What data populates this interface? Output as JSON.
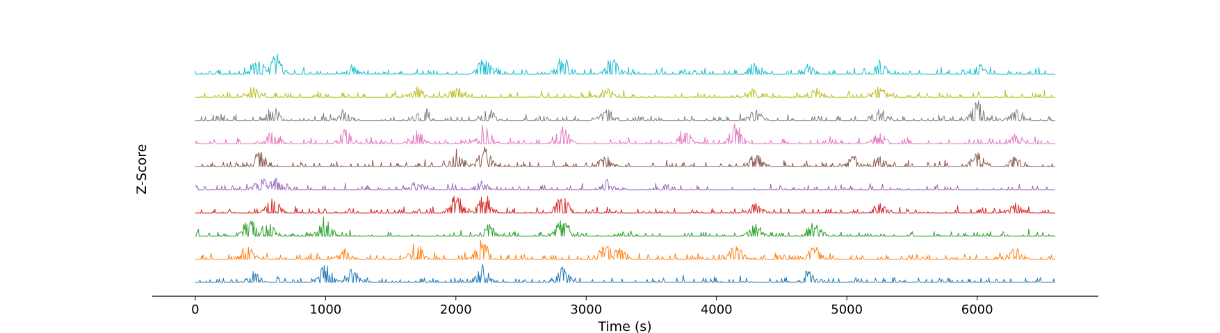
{
  "chart_data": {
    "type": "line",
    "title": "",
    "xlabel": "Time (s)",
    "ylabel": "Z-Score",
    "xlim": [
      -330,
      6930
    ],
    "xticks": [
      0,
      1000,
      2000,
      3000,
      4000,
      5000,
      6000
    ],
    "x_range": [
      0,
      6600
    ],
    "y_axis_visible": false,
    "grid": false,
    "legend": "none",
    "series": [
      {
        "color": "#1f77b4",
        "seed": 11,
        "peaks": [
          [
            450,
            0.55
          ],
          [
            1000,
            1.0
          ],
          [
            1200,
            0.7
          ],
          [
            2200,
            0.85
          ],
          [
            2820,
            0.75
          ],
          [
            4700,
            0.6
          ]
        ]
      },
      {
        "color": "#ff7f0e",
        "seed": 23,
        "peaks": [
          [
            400,
            0.7
          ],
          [
            1150,
            0.55
          ],
          [
            1700,
            0.85
          ],
          [
            2200,
            1.0
          ],
          [
            3150,
            0.8
          ],
          [
            3250,
            0.6
          ],
          [
            4150,
            0.75
          ],
          [
            4750,
            0.7
          ],
          [
            6300,
            0.6
          ]
        ]
      },
      {
        "color": "#2ca02c",
        "seed": 37,
        "peaks": [
          [
            420,
            1.0
          ],
          [
            550,
            0.8
          ],
          [
            1000,
            1.0
          ],
          [
            2250,
            0.6
          ],
          [
            2820,
            0.95
          ],
          [
            4300,
            0.6
          ],
          [
            4750,
            0.85
          ]
        ]
      },
      {
        "color": "#d62728",
        "seed": 41,
        "peaks": [
          [
            600,
            0.85
          ],
          [
            2000,
            0.95
          ],
          [
            2220,
            1.0
          ],
          [
            2820,
            0.95
          ],
          [
            4300,
            0.6
          ],
          [
            5250,
            0.55
          ],
          [
            6300,
            0.5
          ]
        ]
      },
      {
        "color": "#9467bd",
        "seed": 53,
        "peaks": [
          [
            500,
            0.7
          ],
          [
            620,
            0.65
          ],
          [
            1700,
            0.5
          ],
          [
            2200,
            0.45
          ],
          [
            3150,
            0.55
          ]
        ]
      },
      {
        "color": "#8c564b",
        "seed": 67,
        "peaks": [
          [
            500,
            0.85
          ],
          [
            2000,
            0.85
          ],
          [
            2220,
            0.95
          ],
          [
            3150,
            0.7
          ],
          [
            4300,
            0.65
          ],
          [
            5050,
            0.6
          ],
          [
            5250,
            0.55
          ],
          [
            6000,
            0.75
          ],
          [
            6300,
            0.55
          ]
        ]
      },
      {
        "color": "#e377c2",
        "seed": 71,
        "peaks": [
          [
            600,
            0.75
          ],
          [
            1150,
            0.7
          ],
          [
            1700,
            0.8
          ],
          [
            2220,
            1.0
          ],
          [
            2820,
            0.9
          ],
          [
            3750,
            0.8
          ],
          [
            4150,
            1.0
          ],
          [
            5250,
            0.55
          ],
          [
            6300,
            0.5
          ]
        ]
      },
      {
        "color": "#7f7f7f",
        "seed": 83,
        "peaks": [
          [
            600,
            0.8
          ],
          [
            1150,
            0.6
          ],
          [
            1750,
            0.7
          ],
          [
            2250,
            0.6
          ],
          [
            3150,
            0.7
          ],
          [
            4300,
            0.6
          ],
          [
            5250,
            0.75
          ],
          [
            6000,
            1.0
          ],
          [
            6300,
            0.7
          ]
        ]
      },
      {
        "color": "#bcbd22",
        "seed": 97,
        "peaks": [
          [
            450,
            0.55
          ],
          [
            1700,
            0.6
          ],
          [
            2000,
            0.6
          ],
          [
            3150,
            0.55
          ],
          [
            4300,
            0.5
          ],
          [
            4750,
            0.5
          ],
          [
            5250,
            0.55
          ]
        ]
      },
      {
        "color": "#17becf",
        "seed": 101,
        "peaks": [
          [
            480,
            1.0
          ],
          [
            620,
            1.0
          ],
          [
            1200,
            0.5
          ],
          [
            2220,
            0.9
          ],
          [
            2820,
            1.0
          ],
          [
            3200,
            0.85
          ],
          [
            4300,
            0.65
          ],
          [
            4700,
            0.55
          ],
          [
            5250,
            0.7
          ],
          [
            6000,
            0.6
          ]
        ]
      }
    ]
  }
}
